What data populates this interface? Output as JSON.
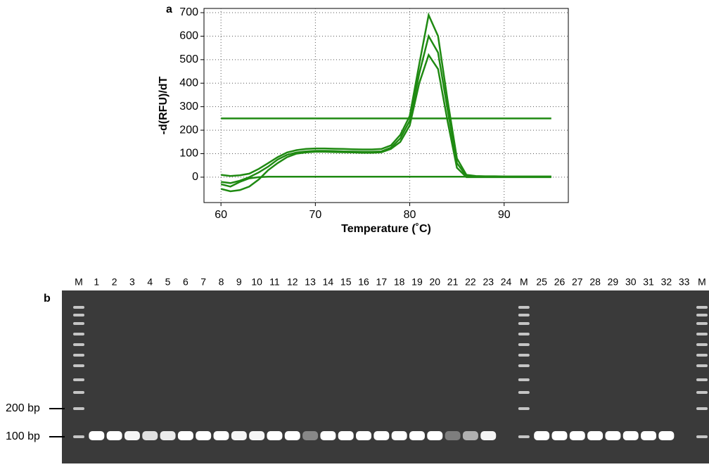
{
  "chart_data": {
    "type": "line",
    "panel_label": "a",
    "y_label": "-d(RFU)/dT",
    "x_label": "Temperature (˚C)",
    "x": [
      60,
      61,
      62,
      63,
      64,
      65,
      66,
      67,
      68,
      69,
      70,
      71,
      72,
      73,
      74,
      75,
      76,
      77,
      78,
      79,
      80,
      81,
      82,
      83,
      84,
      85,
      86,
      87,
      88,
      89,
      90,
      91,
      92,
      93,
      94,
      95
    ],
    "series": [
      {
        "color": "#1f8a12",
        "values": [
          10,
          5,
          8,
          15,
          35,
          60,
          85,
          105,
          115,
          120,
          122,
          122,
          121,
          120,
          119,
          118,
          118,
          120,
          135,
          180,
          260,
          480,
          690,
          600,
          330,
          80,
          10,
          5,
          4,
          4,
          3,
          3,
          3,
          3,
          3,
          3
        ]
      },
      {
        "color": "#1f8a12",
        "values": [
          -20,
          -25,
          -15,
          0,
          20,
          45,
          75,
          95,
          105,
          110,
          112,
          112,
          111,
          110,
          109,
          108,
          108,
          110,
          125,
          165,
          240,
          440,
          600,
          530,
          290,
          60,
          5,
          2,
          2,
          2,
          2,
          2,
          2,
          2,
          2,
          2
        ]
      },
      {
        "color": "#1f8a12",
        "values": [
          -50,
          -60,
          -55,
          -40,
          -10,
          30,
          60,
          85,
          100,
          105,
          108,
          108,
          107,
          106,
          105,
          104,
          104,
          106,
          120,
          150,
          220,
          400,
          520,
          460,
          240,
          40,
          0,
          0,
          0,
          0,
          0,
          0,
          0,
          0,
          0,
          0
        ]
      },
      {
        "color": "#1f8a12",
        "values": [
          -30,
          -40,
          -20,
          -5,
          0,
          2,
          2,
          2,
          2,
          2,
          2,
          2,
          2,
          2,
          2,
          2,
          2,
          2,
          2,
          2,
          2,
          2,
          2,
          2,
          2,
          2,
          2,
          2,
          2,
          2,
          2,
          2,
          2,
          2,
          2,
          2
        ]
      },
      {
        "color": "#1f8a12",
        "values": [
          250,
          250,
          250,
          250,
          250,
          250,
          250,
          250,
          250,
          250,
          250,
          250,
          250,
          250,
          250,
          250,
          250,
          250,
          250,
          250,
          250,
          250,
          250,
          250,
          250,
          250,
          250,
          250,
          250,
          250,
          250,
          250,
          250,
          250,
          250,
          250
        ]
      }
    ],
    "xlim": [
      58.2,
      96.8
    ],
    "ylim": [
      -108,
      718
    ],
    "xticks": [
      60,
      70,
      80,
      90
    ],
    "yticks": [
      0,
      100,
      200,
      300,
      400,
      500,
      600,
      700
    ],
    "grid": true
  },
  "gel": {
    "panel_label": "b",
    "lanes": [
      "M",
      "1",
      "2",
      "3",
      "4",
      "5",
      "6",
      "7",
      "8",
      "9",
      "10",
      "11",
      "12",
      "13",
      "14",
      "15",
      "16",
      "17",
      "18",
      "19",
      "20",
      "21",
      "22",
      "23",
      "24",
      "M",
      "25",
      "26",
      "27",
      "28",
      "29",
      "30",
      "31",
      "32",
      "33",
      "M"
    ],
    "markers": [
      "200 bp",
      "100 bp"
    ]
  }
}
